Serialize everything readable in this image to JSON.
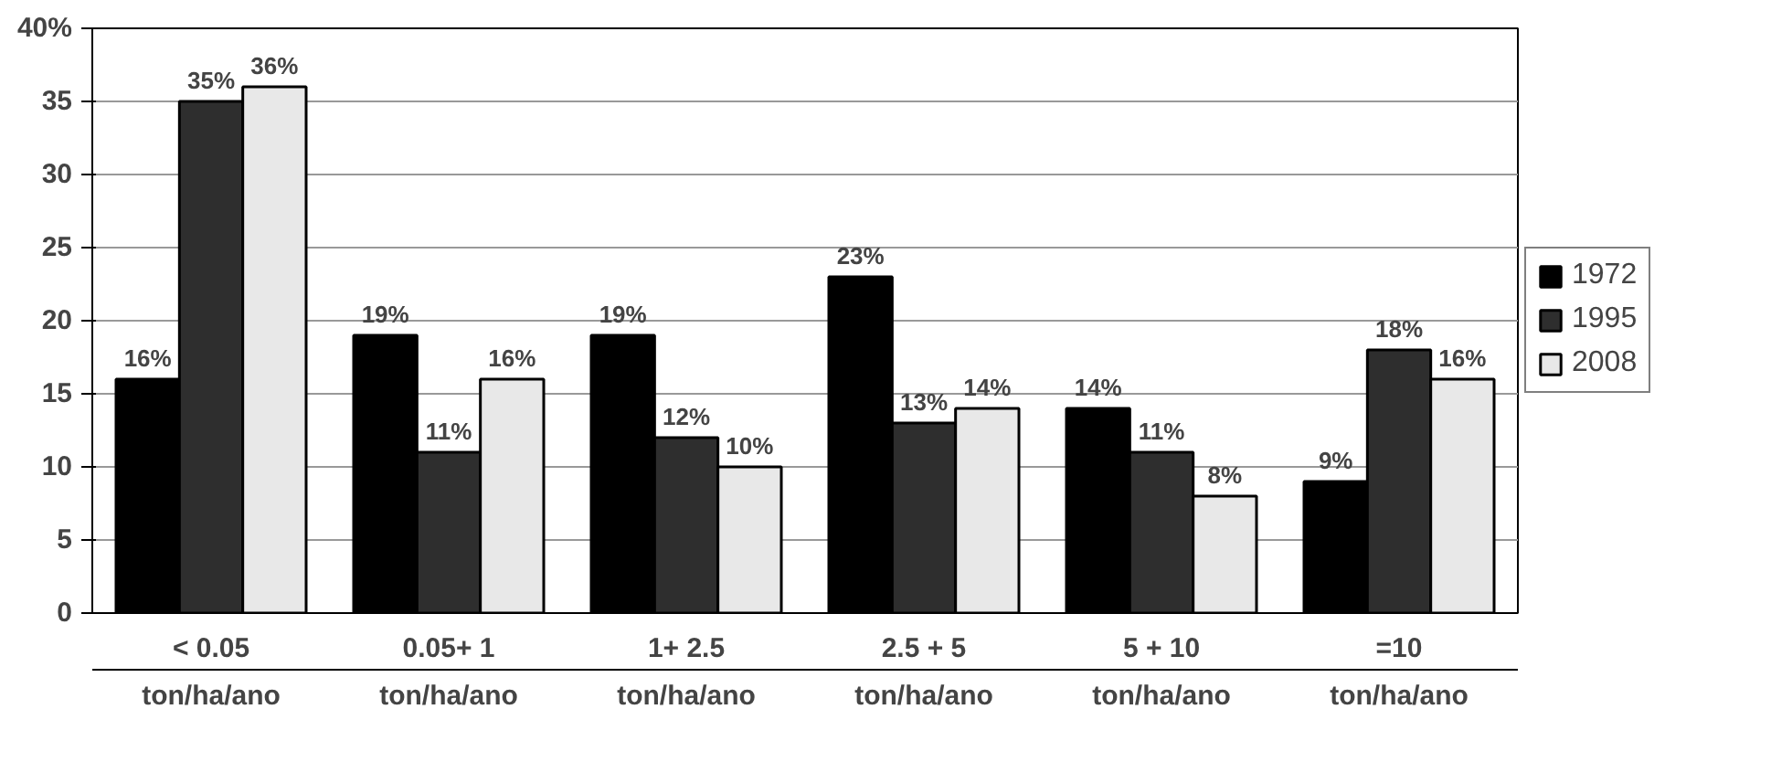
{
  "chart_data": {
    "type": "bar",
    "categories": [
      "< 0.05\nton/ha/ano",
      "0.05+ 1\nton/ha/ano",
      "1+ 2.5\nton/ha/ano",
      "2.5 + 5\nton/ha/ano",
      "5 + 10\nton/ha/ano",
      "=10\nton/ha/ano"
    ],
    "series": [
      {
        "name": "1972",
        "color": "#000000",
        "values": [
          16,
          19,
          19,
          23,
          14,
          9
        ],
        "value_labels": [
          "16%",
          "19%",
          "19%",
          "23%",
          "14%",
          "9%"
        ]
      },
      {
        "name": "1995",
        "color": "#2e2e2e",
        "values": [
          35,
          11,
          12,
          13,
          11,
          18
        ],
        "value_labels": [
          "35%",
          "11%",
          "12%",
          "13%",
          "11%",
          "18%"
        ]
      },
      {
        "name": "2008",
        "color": "#e8e8e8",
        "values": [
          36,
          16,
          10,
          14,
          8,
          16
        ],
        "value_labels": [
          "36%",
          "16%",
          "10%",
          "14%",
          "8%",
          "16%"
        ]
      }
    ],
    "ylim": [
      0,
      40
    ],
    "yticks": [
      0,
      5,
      10,
      15,
      20,
      25,
      30,
      35,
      {
        "value": 40,
        "label": "40%"
      }
    ],
    "grid": "y",
    "legend": "right"
  }
}
